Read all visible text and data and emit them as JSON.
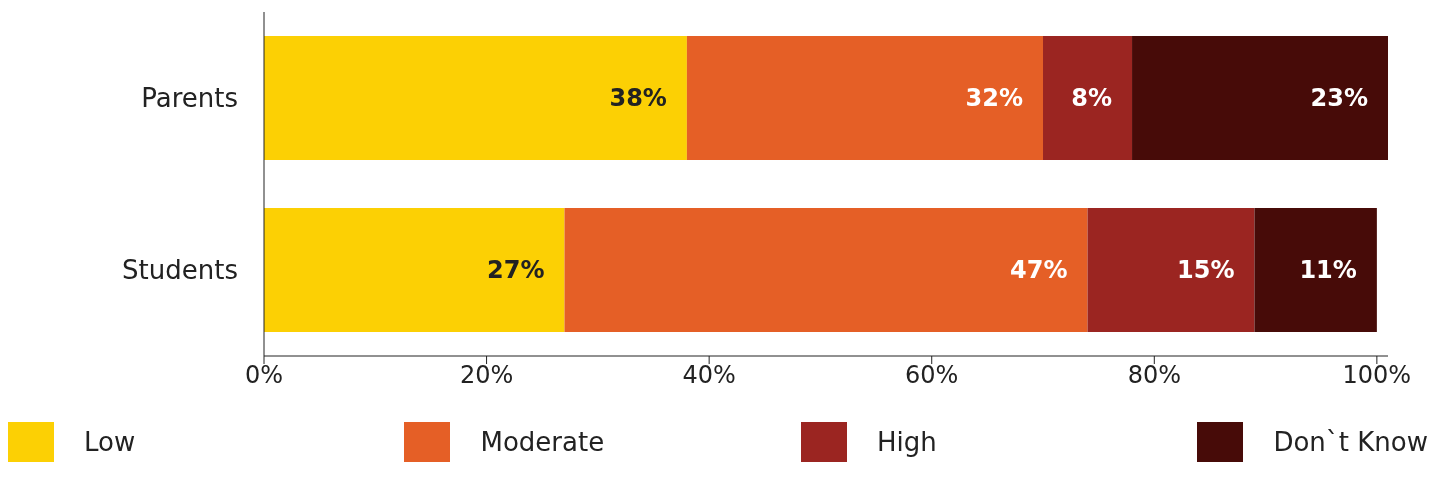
{
  "chart_data": {
    "type": "bar",
    "orientation": "horizontal",
    "stacked": true,
    "categories": [
      "Parents",
      "Students"
    ],
    "series": [
      {
        "name": "Low",
        "color": "#fcd004",
        "values": [
          38,
          27
        ],
        "value_labels": [
          "38%",
          "27%"
        ]
      },
      {
        "name": "Moderate",
        "color": "#e55f26",
        "values": [
          32,
          47
        ],
        "value_labels": [
          "32%",
          "47%"
        ]
      },
      {
        "name": "High",
        "color": "#9b2521",
        "values": [
          8,
          15
        ],
        "value_labels": [
          "8%",
          "15%"
        ]
      },
      {
        "name": "Don`t Know",
        "color": "#470b08",
        "values": [
          23,
          11
        ],
        "value_labels": [
          "23%",
          "11%"
        ]
      }
    ],
    "xlim": [
      0,
      101
    ],
    "xticks": [
      {
        "value": 0,
        "label": "0%"
      },
      {
        "value": 20,
        "label": "20%"
      },
      {
        "value": 40,
        "label": "40%"
      },
      {
        "value": 60,
        "label": "60%"
      },
      {
        "value": 80,
        "label": "80%"
      },
      {
        "value": 100,
        "label": "100%"
      }
    ],
    "grid": false,
    "legend": "bottom"
  }
}
